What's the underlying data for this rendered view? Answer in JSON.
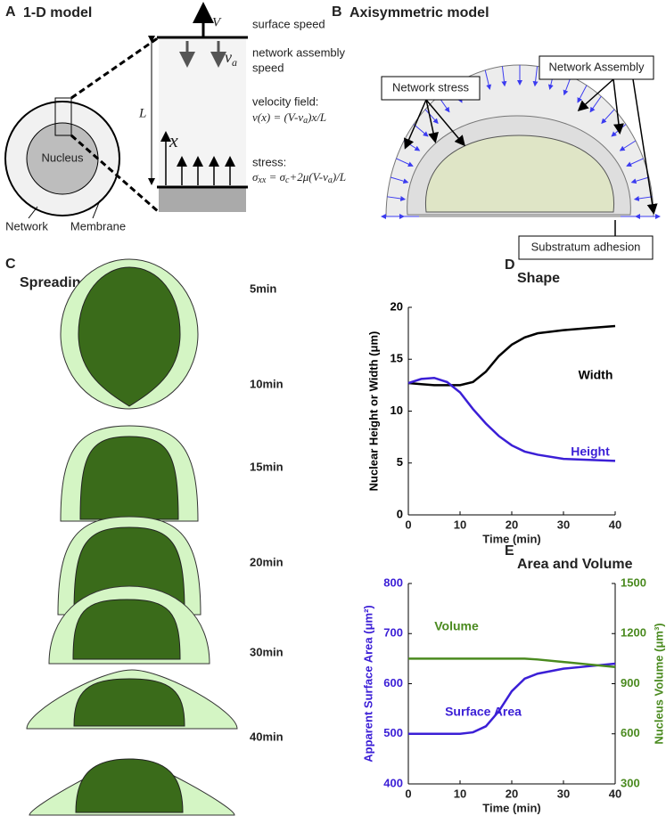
{
  "panel_a": {
    "letter": "A",
    "title": "1-D model",
    "nucleus": "Nucleus",
    "network": "Network",
    "membrane": "Membrane",
    "v": "V",
    "L": "L",
    "x": "x",
    "va": [
      "v",
      "a"
    ],
    "surface_speed": "surface speed",
    "assembly_speed": [
      "network assembly",
      "speed"
    ],
    "velocity_title": "velocity field:",
    "velocity_formula": [
      "v(x) = (V-v",
      "a",
      ")x/L"
    ],
    "stress_title": "stress:",
    "stress_formula": [
      "σ",
      "xx",
      " = σ",
      "c",
      "+2μ(V-v",
      "a",
      ")/L"
    ]
  },
  "panel_b": {
    "letter": "B",
    "title": "Axisymmetric model",
    "network_stress": "Network stress",
    "network_assembly": "Network Assembly",
    "substratum_adhesion": "Substratum adhesion"
  },
  "panel_c": {
    "letter": "C",
    "title": "Spreading Simulation",
    "times": [
      "5min",
      "10min",
      "15min",
      "20min",
      "30min",
      "40min"
    ]
  },
  "chart_data": [
    {
      "type": "line",
      "letter": "D",
      "title": "Shape",
      "x_label": "Time (min)",
      "y_label": "Nuclear Height or Width (μm)",
      "x": [
        0,
        2.5,
        5,
        7.5,
        10,
        12.5,
        15,
        17.5,
        20,
        22.5,
        25,
        30,
        35,
        40
      ],
      "series": [
        {
          "name": "Width",
          "color": "#000000",
          "values": [
            12.7,
            12.6,
            12.5,
            12.5,
            12.5,
            12.8,
            13.8,
            15.3,
            16.4,
            17.1,
            17.5,
            17.8,
            18.0,
            18.2
          ]
        },
        {
          "name": "Height",
          "color": "#3b1fd6",
          "values": [
            12.7,
            13.1,
            13.2,
            12.8,
            11.8,
            10.2,
            8.8,
            7.6,
            6.7,
            6.1,
            5.8,
            5.4,
            5.3,
            5.2
          ]
        }
      ],
      "xlim": [
        0,
        40
      ],
      "xticks": [
        0,
        10,
        20,
        30,
        40
      ],
      "ylim": [
        0,
        20
      ],
      "yticks": [
        0,
        5,
        10,
        15,
        20
      ]
    },
    {
      "type": "line",
      "letter": "E",
      "title": "Area and Volume",
      "x_label": "Time (min)",
      "y_label": "Apparent Surface Area (μm²)",
      "y2_label": "Nucleus Volume (μm³)",
      "x": [
        0,
        2.5,
        5,
        7.5,
        10,
        12.5,
        15,
        17.5,
        20,
        22.5,
        25,
        30,
        35,
        40
      ],
      "series": [
        {
          "name": "Surface Area",
          "color": "#3b1fd6",
          "values": [
            500,
            500,
            500,
            500,
            500,
            503,
            515,
            545,
            585,
            610,
            620,
            630,
            635,
            640
          ]
        },
        {
          "name": "Volume",
          "color": "#4a8a1f",
          "axis": "y2",
          "values": [
            1050,
            1050,
            1050,
            1050,
            1050,
            1050,
            1050,
            1050,
            1050,
            1050,
            1045,
            1030,
            1015,
            1000
          ]
        }
      ],
      "xlim": [
        0,
        40
      ],
      "xticks": [
        0,
        10,
        20,
        30,
        40
      ],
      "ylim": [
        400,
        800
      ],
      "yticks": [
        400,
        500,
        600,
        700,
        800
      ],
      "y2lim": [
        300,
        1500
      ],
      "y2ticks": [
        300,
        600,
        900,
        1200,
        1500
      ]
    }
  ]
}
